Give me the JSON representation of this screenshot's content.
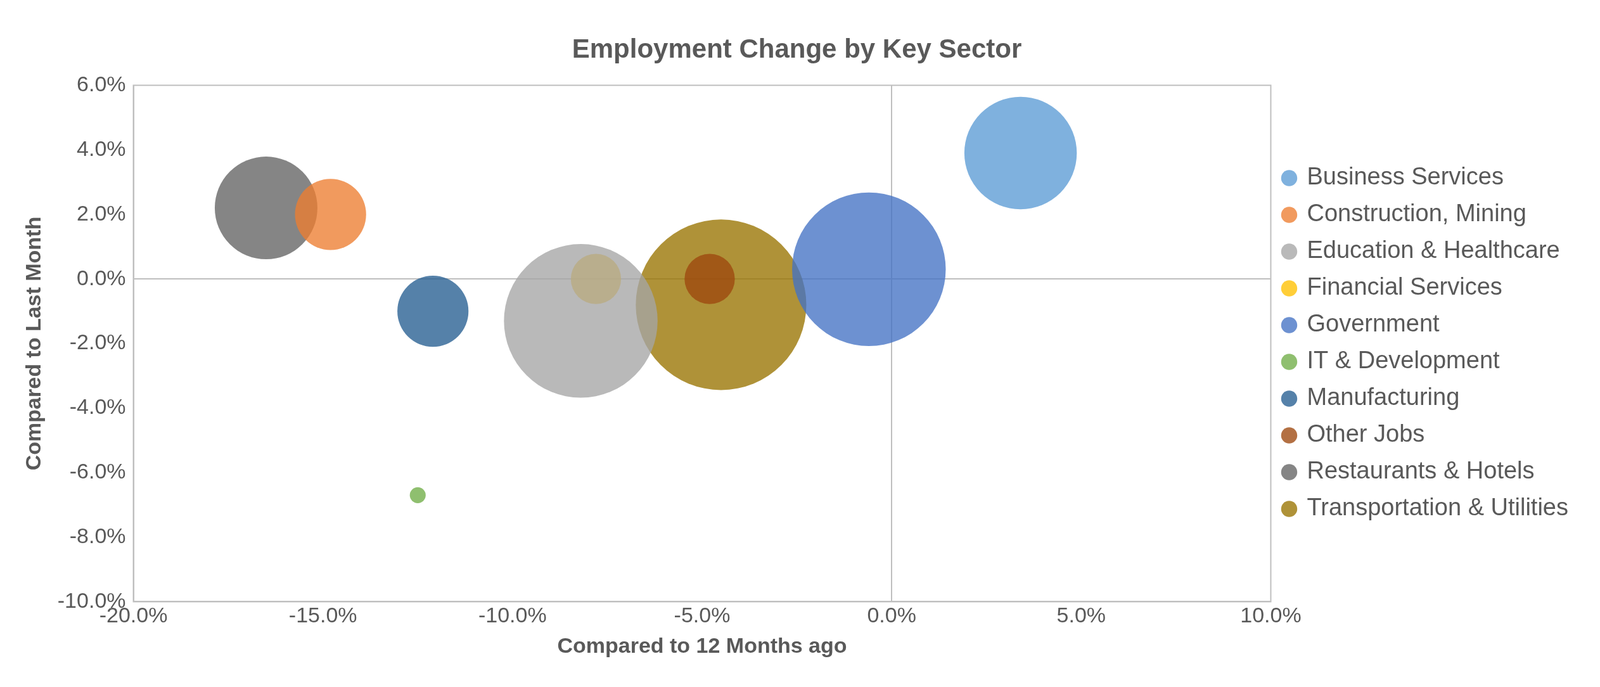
{
  "chart_data": {
    "type": "bubble",
    "title": "Employment Change by Key Sector",
    "x_label": "Compared to 12 Months ago",
    "y_label": "Compared to Last Month",
    "series": [
      {
        "name": "Business Services",
        "color": "#5B9BD5",
        "x": 3.4,
        "y": 3.9,
        "size": 30
      },
      {
        "name": "Construction, Mining",
        "color": "#ED7D31",
        "x": -14.8,
        "y": 2.0,
        "size": 12
      },
      {
        "name": "Education & Healthcare",
        "color": "#A5A5A5",
        "x": -8.2,
        "y": -1.3,
        "size": 56
      },
      {
        "name": "Financial Services",
        "color": "#FFC000",
        "x": -7.8,
        "y": 0.0,
        "size": 6
      },
      {
        "name": "Government",
        "color": "#4472C4",
        "x": -0.6,
        "y": 0.3,
        "size": 56
      },
      {
        "name": "IT & Development",
        "color": "#70AD47",
        "x": -12.5,
        "y": -6.7,
        "size": 0.6
      },
      {
        "name": "Manufacturing",
        "color": "#255E91",
        "x": -12.1,
        "y": -1.0,
        "size": 12
      },
      {
        "name": "Other Jobs",
        "color": "#9E480E",
        "x": -4.8,
        "y": 0.0,
        "size": 6
      },
      {
        "name": "Restaurants & Hotels",
        "color": "#636363",
        "x": -16.5,
        "y": 2.2,
        "size": 25
      },
      {
        "name": "Transportation & Utilities",
        "color": "#997300",
        "x": -4.5,
        "y": -0.8,
        "size": 69
      }
    ],
    "xlim": [
      -20,
      10
    ],
    "xticks": [
      {
        "value": -20,
        "label": "-20.0%"
      },
      {
        "value": -15,
        "label": "-15.0%"
      },
      {
        "value": -10,
        "label": "-10.0%"
      },
      {
        "value": -5,
        "label": "-5.0%"
      },
      {
        "value": 0,
        "label": "0.0%"
      },
      {
        "value": 5,
        "label": "5.0%"
      },
      {
        "value": 10,
        "label": "10.0%"
      }
    ],
    "ylim": [
      -10,
      6
    ],
    "yticks": [
      {
        "value": -10,
        "label": "-10.0%"
      },
      {
        "value": -8,
        "label": "-8.0%"
      },
      {
        "value": -6,
        "label": "-6.0%"
      },
      {
        "value": -4,
        "label": "-4.0%"
      },
      {
        "value": -2,
        "label": "-2.0%"
      },
      {
        "value": 0,
        "label": "0.0%"
      },
      {
        "value": 2,
        "label": "2.0%"
      },
      {
        "value": 4,
        "label": "4.0%"
      },
      {
        "value": 6,
        "label": "6.0%"
      }
    ],
    "grid": false,
    "legend": "right"
  }
}
